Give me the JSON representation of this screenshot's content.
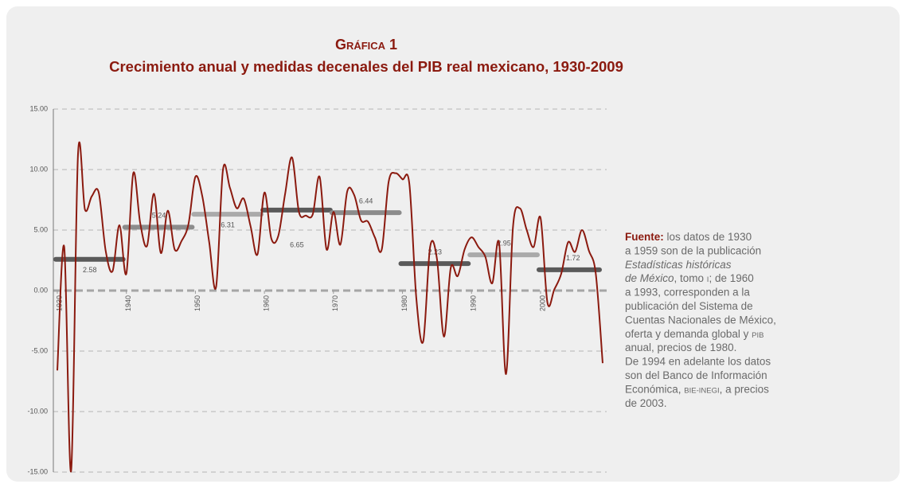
{
  "chart_data": {
    "type": "line",
    "title": "Gráfica 1",
    "subtitle": "Crecimiento anual y medidas decenales del PIB real mexicano, 1930-2009",
    "x": [
      1930,
      1931,
      1932,
      1933,
      1934,
      1935,
      1936,
      1937,
      1938,
      1939,
      1940,
      1941,
      1942,
      1943,
      1944,
      1945,
      1946,
      1947,
      1948,
      1949,
      1950,
      1951,
      1952,
      1953,
      1954,
      1955,
      1956,
      1957,
      1958,
      1959,
      1960,
      1961,
      1962,
      1963,
      1964,
      1965,
      1966,
      1967,
      1968,
      1969,
      1970,
      1971,
      1972,
      1973,
      1974,
      1975,
      1976,
      1977,
      1978,
      1979,
      1980,
      1981,
      1982,
      1983,
      1984,
      1985,
      1986,
      1987,
      1988,
      1989,
      1990,
      1991,
      1992,
      1993,
      1994,
      1995,
      1996,
      1997,
      1998,
      1999,
      2000,
      2001,
      2002,
      2003,
      2004,
      2005,
      2006,
      2007,
      2008,
      2009
    ],
    "series": [
      {
        "name": "Crecimiento anual",
        "color": "#8b1a0f",
        "values": [
          -6.6,
          3.6,
          -14.9,
          11.3,
          6.7,
          7.8,
          8.1,
          3.3,
          1.6,
          5.4,
          1.4,
          9.7,
          5.6,
          3.7,
          8.0,
          3.1,
          6.6,
          3.4,
          4.1,
          5.5,
          9.4,
          7.8,
          4.0,
          0.3,
          10.0,
          8.5,
          6.8,
          7.6,
          5.3,
          3.0,
          8.1,
          4.3,
          4.5,
          8.0,
          11.0,
          6.5,
          6.2,
          6.3,
          9.4,
          3.4,
          6.5,
          3.8,
          8.2,
          7.9,
          5.8,
          5.7,
          4.4,
          3.4,
          9.0,
          9.7,
          9.2,
          8.8,
          -0.6,
          -4.2,
          3.6,
          2.6,
          -3.8,
          1.9,
          1.2,
          3.4,
          4.4,
          3.6,
          2.8,
          0.6,
          3.9,
          -6.9,
          5.2,
          6.8,
          5.0,
          3.6,
          6.0,
          -1.0,
          0.1,
          1.4,
          4.0,
          3.2,
          5.0,
          3.3,
          1.4,
          -6.0
        ]
      }
    ],
    "decade_means": {
      "values": [
        2.58,
        5.24,
        6.31,
        6.65,
        6.44,
        2.23,
        2.95,
        1.72
      ],
      "colors": [
        "#5a5a5a",
        "#8c8c8c",
        "#aaaaaa",
        "#5a5a5a",
        "#8c8c8c",
        "#5a5a5a",
        "#aaaaaa",
        "#5a5a5a"
      ]
    },
    "xlim": [
      1930,
      2009
    ],
    "xticks": [
      1930,
      1940,
      1950,
      1960,
      1970,
      1980,
      1990,
      2000
    ],
    "ylim": [
      -15,
      15
    ],
    "yticks": [
      {
        "value": -15,
        "label": "-15.00"
      },
      {
        "value": -10,
        "label": "-10.00"
      },
      {
        "value": -5,
        "label": "-5.00"
      },
      {
        "value": 0,
        "label": "0.00"
      },
      {
        "value": 5,
        "label": "5.00"
      },
      {
        "value": 10,
        "label": "10.00"
      },
      {
        "value": 15,
        "label": "15.00"
      }
    ],
    "grid": true,
    "source_note": {
      "lead": "Fuente:",
      "lines": [
        [
          "los datos de 1930"
        ],
        [
          "a 1959 son de la publicación"
        ],
        [
          "Estadísticas históricas"
        ],
        [
          "de México",
          ", tomo ",
          "I",
          "; de 1960"
        ],
        [
          "a 1993, corresponden a la"
        ],
        [
          "publicación del Sistema de"
        ],
        [
          "Cuentas Nacionales de México,"
        ],
        [
          "oferta y demanda global y ",
          "PIB"
        ],
        [
          "anual, precios de 1980."
        ],
        [
          "De 1994 en adelante los datos"
        ],
        [
          "son del Banco de Información"
        ],
        [
          "Económica, ",
          "BIE-INEGI",
          ", a precios"
        ],
        [
          "de 2003."
        ]
      ]
    }
  }
}
